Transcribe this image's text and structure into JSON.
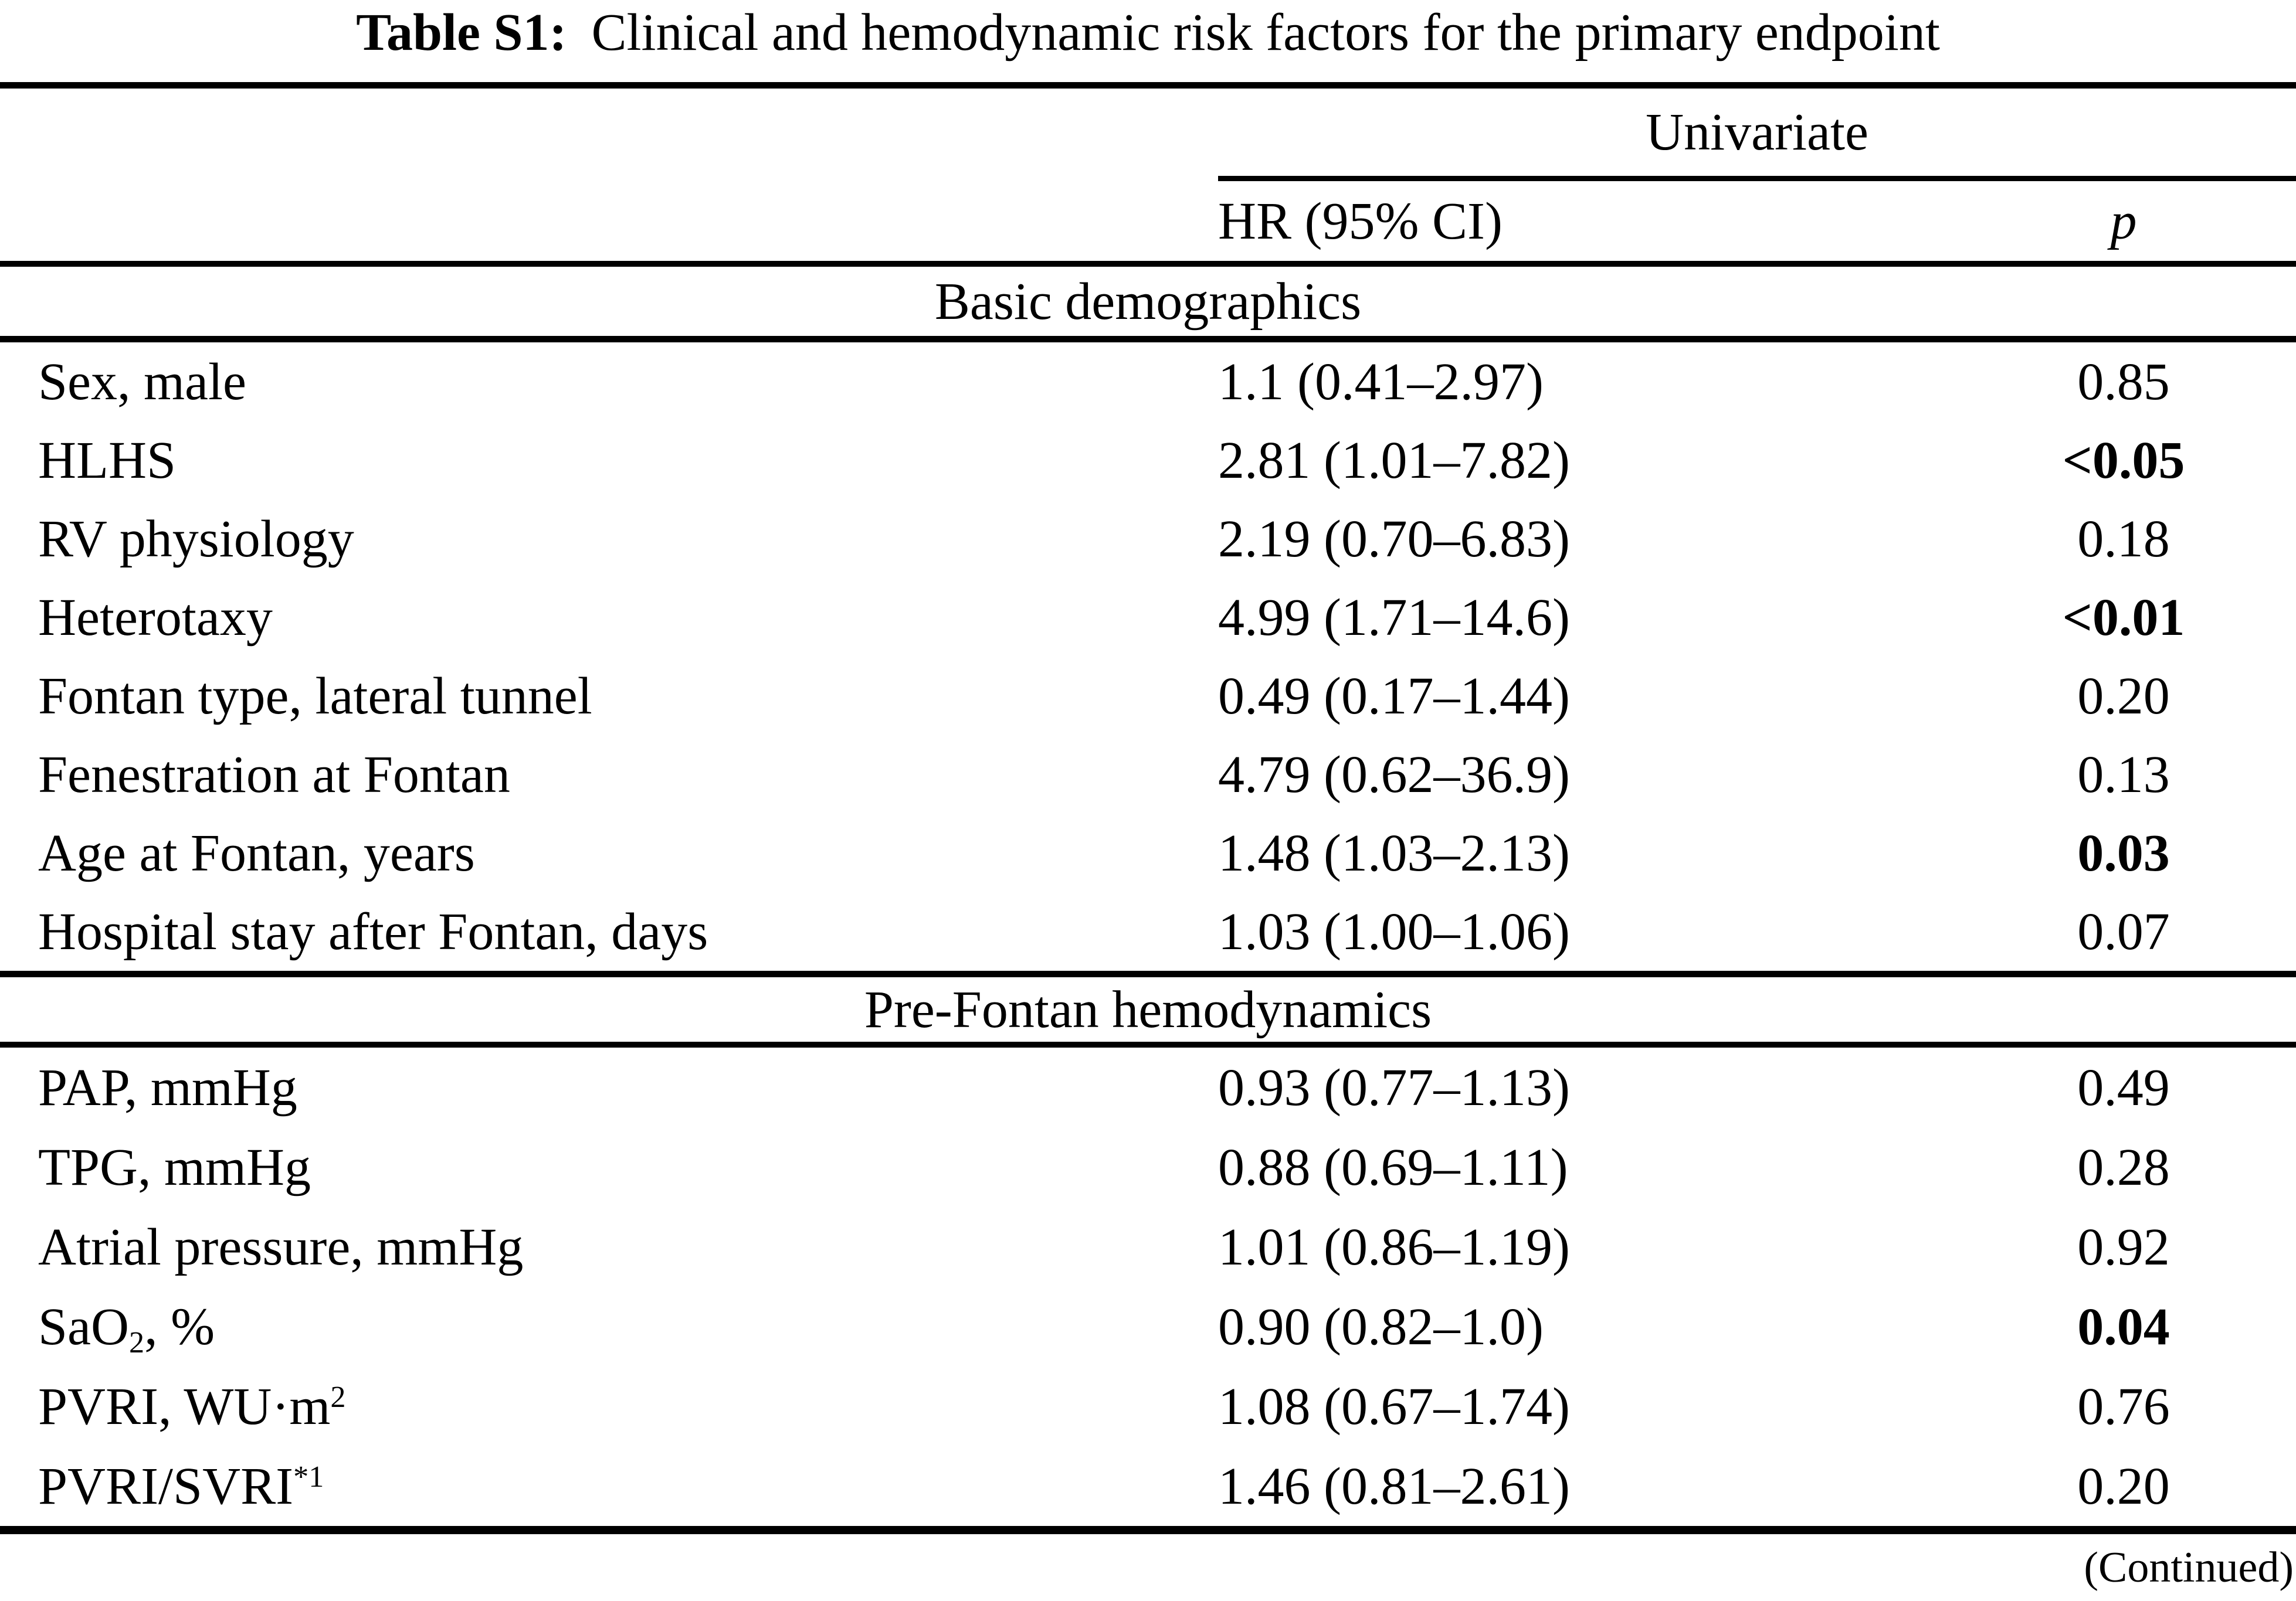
{
  "colors": {
    "text": "#000000",
    "background": "#ffffff"
  },
  "title": {
    "label": "Table S1:",
    "text": "Clinical and hemodynamic risk factors for the primary endpoint"
  },
  "header": {
    "group": "Univariate",
    "col_hr": "HR (95% CI)",
    "col_p": "p"
  },
  "sections": [
    {
      "name": "Basic demographics",
      "rows": [
        {
          "label_pre": "Sex, male",
          "label_sub": "",
          "label_sup": "",
          "label_post": "",
          "hr": "1.1 (0.41–2.97)",
          "p": "0.85",
          "p_bold": false
        },
        {
          "label_pre": "HLHS",
          "label_sub": "",
          "label_sup": "",
          "label_post": "",
          "hr": "2.81 (1.01–7.82)",
          "p": "<0.05",
          "p_bold": true
        },
        {
          "label_pre": "RV physiology",
          "label_sub": "",
          "label_sup": "",
          "label_post": "",
          "hr": "2.19 (0.70–6.83)",
          "p": "0.18",
          "p_bold": false
        },
        {
          "label_pre": "Heterotaxy",
          "label_sub": "",
          "label_sup": "",
          "label_post": "",
          "hr": "4.99 (1.71–14.6)",
          "p": "<0.01",
          "p_bold": true
        },
        {
          "label_pre": "Fontan type, lateral tunnel",
          "label_sub": "",
          "label_sup": "",
          "label_post": "",
          "hr": "0.49 (0.17–1.44)",
          "p": "0.20",
          "p_bold": false
        },
        {
          "label_pre": "Fenestration at Fontan",
          "label_sub": "",
          "label_sup": "",
          "label_post": "",
          "hr": "4.79 (0.62–36.9)",
          "p": "0.13",
          "p_bold": false
        },
        {
          "label_pre": "Age at Fontan, years",
          "label_sub": "",
          "label_sup": "",
          "label_post": "",
          "hr": "1.48 (1.03–2.13)",
          "p": "0.03",
          "p_bold": true
        },
        {
          "label_pre": "Hospital stay after Fontan, days",
          "label_sub": "",
          "label_sup": "",
          "label_post": "",
          "hr": "1.03 (1.00–1.06)",
          "p": "0.07",
          "p_bold": false
        }
      ]
    },
    {
      "name": "Pre-Fontan hemodynamics",
      "rows": [
        {
          "label_pre": "PAP, mmHg",
          "label_sub": "",
          "label_sup": "",
          "label_post": "",
          "hr": "0.93 (0.77–1.13)",
          "p": "0.49",
          "p_bold": false
        },
        {
          "label_pre": "TPG, mmHg",
          "label_sub": "",
          "label_sup": "",
          "label_post": "",
          "hr": "0.88 (0.69–1.11)",
          "p": "0.28",
          "p_bold": false
        },
        {
          "label_pre": "Atrial pressure, mmHg",
          "label_sub": "",
          "label_sup": "",
          "label_post": "",
          "hr": "1.01 (0.86–1.19)",
          "p": "0.92",
          "p_bold": false
        },
        {
          "label_pre": "SaO",
          "label_sub": "2",
          "label_sup": "",
          "label_post": ", %",
          "hr": "0.90 (0.82–1.0)",
          "p": "0.04",
          "p_bold": true
        },
        {
          "label_pre": "PVRI, WU·m",
          "label_sub": "",
          "label_sup": "2",
          "label_post": "",
          "hr": "1.08 (0.67–1.74)",
          "p": "0.76",
          "p_bold": false
        },
        {
          "label_pre": "PVRI/SVRI",
          "label_sub": "",
          "label_sup": "*1",
          "label_post": "",
          "hr": "1.46 (0.81–2.61)",
          "p": "0.20",
          "p_bold": false
        }
      ]
    }
  ],
  "footer": {
    "continued": "(Continued)"
  }
}
